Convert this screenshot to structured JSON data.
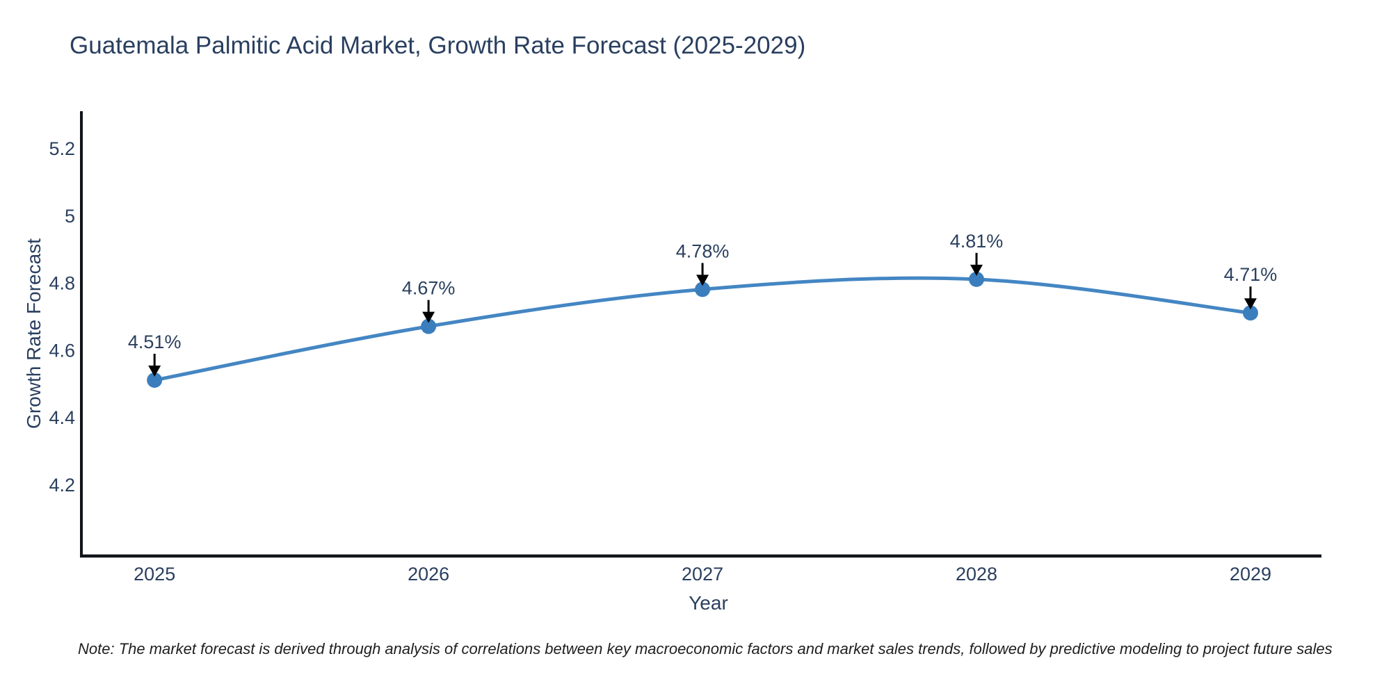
{
  "title": "Guatemala Palmitic Acid Market, Growth Rate Forecast (2025-2029)",
  "note": "Note: The market forecast is derived through analysis of correlations between key macroeconomic factors and market sales trends, followed by predictive modeling to project future sales",
  "chart_data": {
    "type": "line",
    "title": "Guatemala Palmitic Acid Market, Growth Rate Forecast (2025-2029)",
    "x": [
      2025,
      2026,
      2027,
      2028,
      2029
    ],
    "categories": [
      "2025",
      "2026",
      "2027",
      "2028",
      "2029"
    ],
    "series": [
      {
        "name": "Growth Rate Forecast",
        "values": [
          4.51,
          4.67,
          4.78,
          4.81,
          4.71
        ],
        "point_labels": [
          "4.51%",
          "4.67%",
          "4.78%",
          "4.81%",
          "4.71%"
        ]
      }
    ],
    "xlabel": "Year",
    "ylabel": "Growth Rate Forecast",
    "xlim": [
      2024.733,
      2029.259
    ],
    "ylim": [
      3.987,
      5.31
    ],
    "yticks": [
      4.2,
      4.4,
      4.6,
      4.8,
      5,
      5.2
    ],
    "ytick_labels": [
      "4.2",
      "4.4",
      "4.6",
      "4.8",
      "5",
      "5.2"
    ],
    "grid": false,
    "legend": "none",
    "line_shape": "spline",
    "marker": "circle",
    "annotation_style": "value-label-with-down-arrow",
    "colors": {
      "line": "#4486c3",
      "marker": "#3b7ebd",
      "annotation_arrow": "#000000",
      "text": "#2a3f5f",
      "axis": "#111419",
      "background": "#ffffff"
    }
  }
}
